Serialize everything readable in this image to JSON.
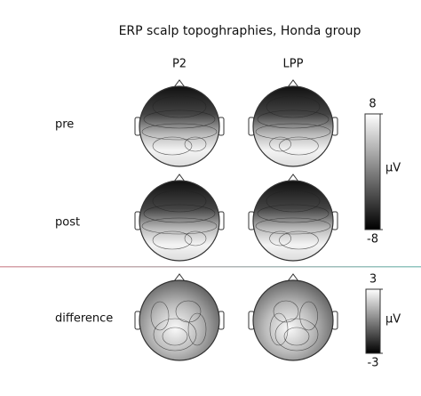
{
  "title": "ERP scalp topoghraphies, Honda group",
  "columns": [
    "P2",
    "LPP"
  ],
  "rows": [
    "pre",
    "post",
    "difference"
  ],
  "colorbars": [
    {
      "ticks": [
        8,
        -8
      ],
      "unit": "μV"
    },
    {
      "ticks": [
        3,
        -3
      ],
      "unit": "μV"
    }
  ]
}
